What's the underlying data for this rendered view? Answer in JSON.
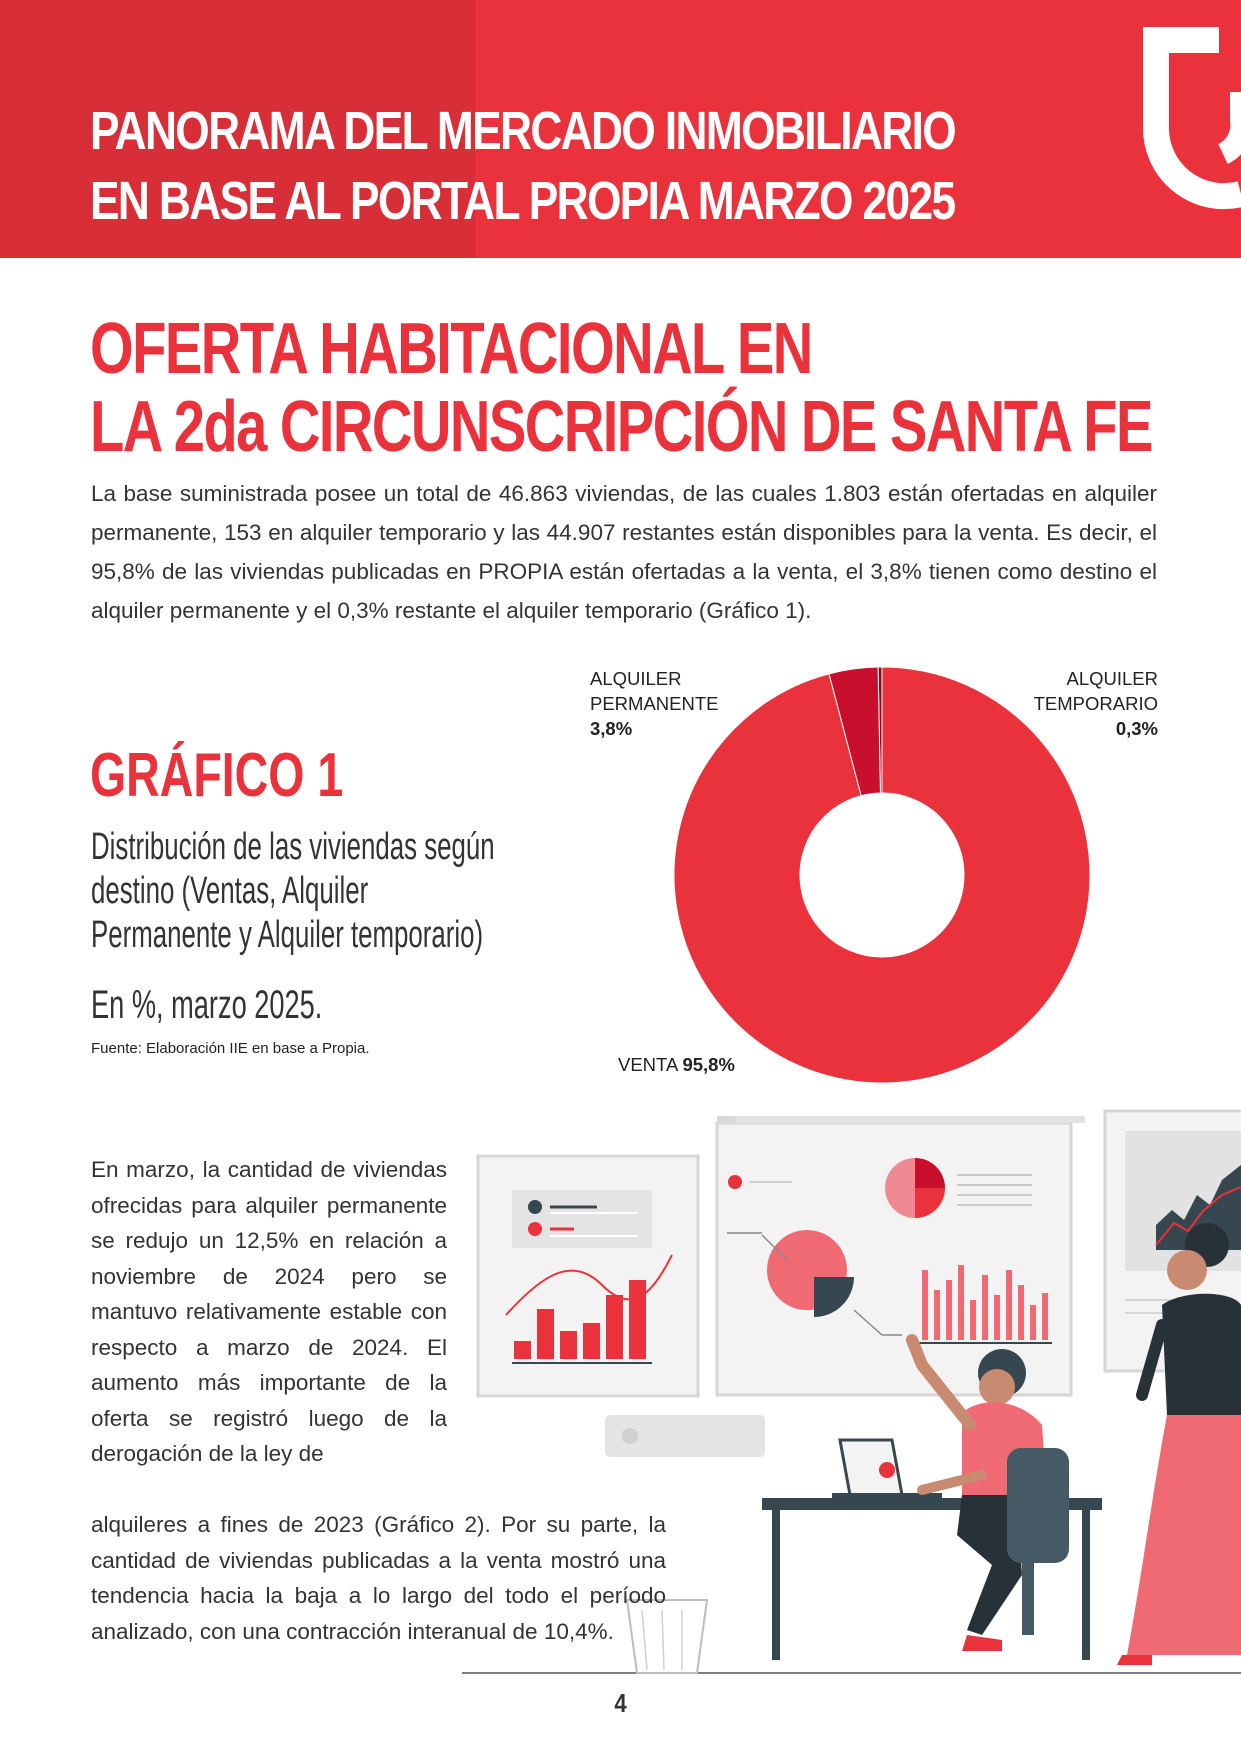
{
  "header": {
    "title_line1": "PANORAMA DEL MERCADO INMOBILIARIO",
    "title_line2": "EN BASE AL PORTAL PROPIA  MARZO 2025"
  },
  "section": {
    "title_line1": "OFERTA HABITACIONAL EN",
    "title_line2": "LA 2da CIRCUNSCRIPCIÓN DE SANTA FE",
    "intro": "La base suministrada posee un total de 46.863 viviendas, de las cuales 1.803 están ofertadas en alquiler permanente, 153 en alquiler temporario y las 44.907 restantes están disponibles para la venta. Es decir, el 95,8% de las viviendas publicadas en PROPIA están ofertadas a la venta, el 3,8% tienen como destino el alquiler permanente y el 0,3% restante el alquiler temporario (Gráfico 1)."
  },
  "graph": {
    "title": "GRÁFICO 1",
    "subtitle": "Distribución de las viviendas según destino (Ventas, Alquiler Permanente y Alquiler temporario)",
    "units": "En %, marzo 2025.",
    "source": "Fuente: Elaboración IIE en base a Propia.",
    "labels": {
      "perm_line1": "ALQUILER",
      "perm_line2": "PERMANENTE",
      "perm_value": "3,8%",
      "temp_line1": "ALQUILER",
      "temp_line2": "TEMPORARIO",
      "temp_value": "0,3%",
      "venta_name": "VENTA",
      "venta_value": "95,8%"
    }
  },
  "chart_data": {
    "type": "pie",
    "donut": true,
    "categories": [
      "VENTA",
      "ALQUILER PERMANENTE",
      "ALQUILER TEMPORARIO"
    ],
    "values": [
      95.8,
      3.8,
      0.3
    ],
    "colors": [
      "#e9323b",
      "#c8102e",
      "#8e0c1e"
    ],
    "legend": "none"
  },
  "body": {
    "paragraph1": "En marzo, la cantidad de viviendas ofrecidas para alquiler permanente se redujo un 12,5% en relación a noviembre de 2024 pero se mantuvo relativamente estable con respecto a marzo de 2024. El aumento más importante de la oferta se registró luego de la derogación de la ley de",
    "paragraph2": "alquileres a fines de 2023 (Gráfico 2). Por su parte, la cantidad de viviendas publicadas a la venta mostró una tendencia hacia la baja a lo largo del todo el período analizado, con una contracción interanual de 10,4%."
  },
  "footer": {
    "page_number": "4"
  },
  "colors": {
    "brand_red": "#e9323b",
    "dark_red": "#d82e37",
    "slate": "#37474f"
  }
}
